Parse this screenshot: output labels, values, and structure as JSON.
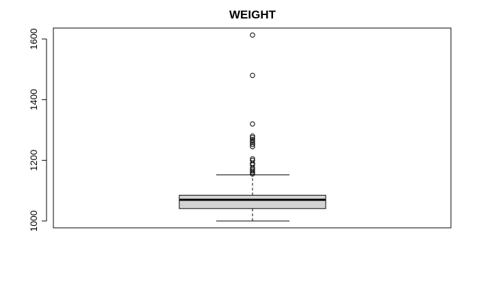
{
  "chart_data": {
    "type": "boxplot",
    "title": "WEIGHT",
    "xlabel": "",
    "ylabel": "",
    "ylim": [
      980,
      1635
    ],
    "yticks": [
      1000,
      1200,
      1400,
      1600
    ],
    "ytick_labels": [
      "1000",
      "1200",
      "1400",
      "1600"
    ],
    "grid": false,
    "legend": "none",
    "box": {
      "whisker_low": 1000,
      "q1": 1041,
      "median": 1070,
      "q3": 1085,
      "whisker_high": 1152
    },
    "outliers": [
      1155,
      1160,
      1165,
      1170,
      1175,
      1185,
      1190,
      1200,
      1205,
      1245,
      1252,
      1258,
      1263,
      1268,
      1275,
      1280,
      1320,
      1480,
      1613
    ],
    "colors": {
      "box_fill": "#d3d3d3",
      "stroke": "#000000",
      "background": "#ffffff"
    }
  }
}
